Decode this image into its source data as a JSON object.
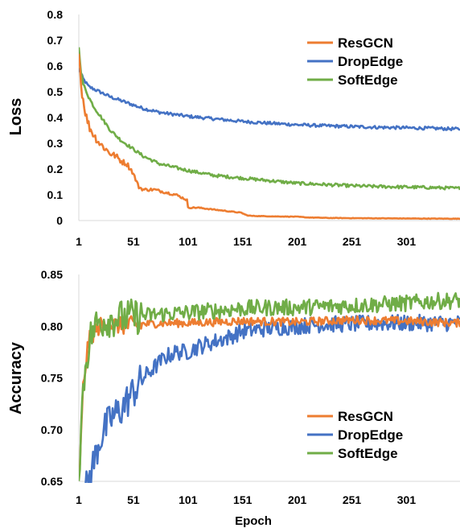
{
  "chart_data": [
    {
      "type": "line",
      "title": "",
      "xlabel": "",
      "ylabel": "Loss",
      "xlim": [
        1,
        350
      ],
      "ylim": [
        0,
        0.8
      ],
      "xticks": [
        1,
        51,
        101,
        151,
        201,
        251,
        301
      ],
      "xtick_labels": [
        "1",
        "51",
        "101",
        "151",
        "201",
        "251",
        "301"
      ],
      "yticks": [
        0,
        0.1,
        0.2,
        0.3,
        0.4,
        0.5,
        0.6,
        0.7,
        0.8
      ],
      "ytick_labels": [
        "0",
        "0.1",
        "0.2",
        "0.3",
        "0.4",
        "0.5",
        "0.6",
        "0.7",
        "0.8"
      ],
      "grid": false,
      "legend": "top-right",
      "series": [
        {
          "name": "ResGCN",
          "color": "#ED7D31",
          "x": [
            1,
            2,
            3,
            5,
            8,
            11,
            15,
            20,
            25,
            30,
            35,
            40,
            45,
            50,
            56,
            60,
            70,
            80,
            90,
            100,
            101,
            110,
            120,
            130,
            140,
            150,
            155,
            160,
            180,
            200,
            210,
            230,
            260,
            300,
            350
          ],
          "y": [
            0.68,
            0.6,
            0.53,
            0.47,
            0.4,
            0.36,
            0.33,
            0.3,
            0.28,
            0.26,
            0.25,
            0.23,
            0.22,
            0.19,
            0.13,
            0.12,
            0.12,
            0.11,
            0.1,
            0.08,
            0.05,
            0.05,
            0.045,
            0.04,
            0.035,
            0.03,
            0.02,
            0.018,
            0.016,
            0.015,
            0.012,
            0.01,
            0.009,
            0.008,
            0.007
          ]
        },
        {
          "name": "DropEdge",
          "color": "#4472C4",
          "x": [
            1,
            5,
            10,
            20,
            30,
            40,
            50,
            60,
            75,
            100,
            125,
            150,
            175,
            200,
            225,
            250,
            275,
            300,
            325,
            350
          ],
          "y": [
            0.59,
            0.55,
            0.52,
            0.5,
            0.48,
            0.465,
            0.45,
            0.435,
            0.42,
            0.405,
            0.395,
            0.385,
            0.378,
            0.372,
            0.368,
            0.365,
            0.362,
            0.36,
            0.358,
            0.355
          ]
        },
        {
          "name": "SoftEdge",
          "color": "#70AD47",
          "x": [
            1,
            3,
            5,
            10,
            15,
            20,
            25,
            30,
            40,
            50,
            60,
            75,
            100,
            125,
            150,
            175,
            200,
            225,
            250,
            275,
            300,
            325,
            350
          ],
          "y": [
            0.67,
            0.58,
            0.53,
            0.48,
            0.44,
            0.41,
            0.38,
            0.35,
            0.31,
            0.28,
            0.25,
            0.22,
            0.195,
            0.175,
            0.165,
            0.155,
            0.145,
            0.14,
            0.135,
            0.132,
            0.13,
            0.128,
            0.125
          ]
        }
      ]
    },
    {
      "type": "line",
      "title": "",
      "xlabel": "Epoch",
      "ylabel": "Accuracy",
      "xlim": [
        1,
        350
      ],
      "ylim": [
        0.65,
        0.85
      ],
      "xticks": [
        1,
        51,
        101,
        151,
        201,
        251,
        301
      ],
      "xtick_labels": [
        "1",
        "51",
        "101",
        "151",
        "201",
        "251",
        "301"
      ],
      "yticks": [
        0.65,
        0.7,
        0.75,
        0.8,
        0.85
      ],
      "ytick_labels": [
        "0.65",
        "0.70",
        "0.75",
        "0.80",
        "0.85"
      ],
      "grid": false,
      "legend": "bottom-right",
      "series": [
        {
          "name": "ResGCN",
          "color": "#ED7D31",
          "x": [
            1,
            3,
            5,
            8,
            10,
            15,
            20,
            30,
            40,
            60,
            80,
            100,
            150,
            200,
            250,
            300,
            350
          ],
          "y": [
            0.65,
            0.69,
            0.74,
            0.77,
            0.785,
            0.795,
            0.8,
            0.802,
            0.8,
            0.802,
            0.803,
            0.803,
            0.805,
            0.804,
            0.806,
            0.805,
            0.803
          ]
        },
        {
          "name": "DropEdge",
          "color": "#4472C4",
          "x": [
            1,
            10,
            15,
            20,
            30,
            40,
            50,
            60,
            70,
            80,
            90,
            100,
            110,
            125,
            140,
            150,
            175,
            200,
            225,
            250,
            275,
            300,
            325,
            350
          ],
          "y": [
            0.62,
            0.65,
            0.67,
            0.69,
            0.71,
            0.72,
            0.735,
            0.75,
            0.76,
            0.77,
            0.775,
            0.775,
            0.78,
            0.785,
            0.79,
            0.795,
            0.798,
            0.8,
            0.802,
            0.802,
            0.803,
            0.803,
            0.803,
            0.803
          ]
        },
        {
          "name": "SoftEdge",
          "color": "#70AD47",
          "x": [
            1,
            3,
            5,
            8,
            12,
            16,
            20,
            30,
            40,
            60,
            80,
            100,
            125,
            150,
            175,
            200,
            225,
            250,
            275,
            300,
            325,
            350
          ],
          "y": [
            0.655,
            0.7,
            0.74,
            0.77,
            0.79,
            0.8,
            0.805,
            0.807,
            0.808,
            0.81,
            0.812,
            0.813,
            0.815,
            0.817,
            0.818,
            0.818,
            0.819,
            0.82,
            0.821,
            0.822,
            0.824,
            0.825
          ]
        }
      ]
    }
  ]
}
